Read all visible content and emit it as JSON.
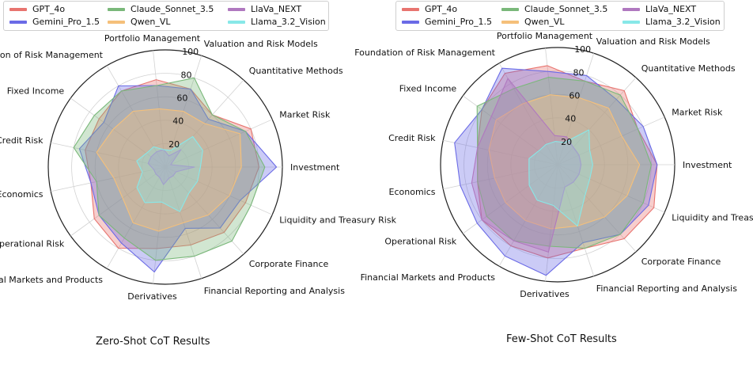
{
  "legend": [
    {
      "name": "GPT_4o",
      "color": "#e8746f"
    },
    {
      "name": "Gemini_Pro_1.5",
      "color": "#6b6be6"
    },
    {
      "name": "Claude_Sonnet_3.5",
      "color": "#7ab87a"
    },
    {
      "name": "Qwen_VL",
      "color": "#f5c07a"
    },
    {
      "name": "LlaVa_NEXT",
      "color": "#b078bf"
    },
    {
      "name": "Llama_3.2_Vision",
      "color": "#88e8e8"
    }
  ],
  "captions": {
    "left": "Zero-Shot CoT Results",
    "right": "Few-Shot CoT Results"
  },
  "chart_data": [
    {
      "type": "radar",
      "title": "Zero-Shot CoT Results",
      "rlim": [
        0,
        100
      ],
      "rticks": [
        "20",
        "40",
        "60",
        "80",
        "100"
      ],
      "categories": [
        "Investment",
        "Market Risk",
        "Quantitative Methods",
        "Valuation and Risk Models",
        "Portfolio Management",
        "Foundation of Risk Management",
        "Fixed Income",
        "Credit Risk",
        "Economics",
        "Operational Risk",
        "Financial Markets and Products",
        "Derivatives",
        "Financial Reporting and Analysis",
        "Corporate Finance",
        "Liquidity and Treasury Risk"
      ],
      "series": [
        {
          "name": "GPT_4o",
          "values": [
            80,
            80,
            60,
            70,
            75,
            75,
            70,
            70,
            65,
            75,
            80,
            70,
            70,
            75,
            75
          ]
        },
        {
          "name": "Gemini_Pro_1.5",
          "values": [
            95,
            75,
            55,
            70,
            70,
            80,
            65,
            75,
            65,
            70,
            75,
            90,
            55,
            70,
            70
          ]
        },
        {
          "name": "Claude_Sonnet_3.5",
          "values": [
            85,
            75,
            60,
            80,
            70,
            75,
            75,
            80,
            60,
            70,
            70,
            80,
            80,
            85,
            80
          ]
        },
        {
          "name": "Qwen_VL",
          "values": [
            65,
            70,
            50,
            50,
            50,
            55,
            55,
            60,
            45,
            45,
            55,
            55,
            50,
            55,
            60
          ]
        },
        {
          "name": "LlaVa_NEXT",
          "values": [
            25,
            5,
            20,
            10,
            15,
            15,
            15,
            15,
            10,
            10,
            10,
            15,
            10,
            10,
            10
          ]
        },
        {
          "name": "Llama_3.2_Vision",
          "values": [
            30,
            35,
            35,
            15,
            15,
            20,
            20,
            25,
            20,
            30,
            35,
            30,
            40,
            30,
            30
          ]
        }
      ]
    },
    {
      "type": "radar",
      "title": "Few-Shot CoT Results",
      "rlim": [
        0,
        100
      ],
      "rticks": [
        "20",
        "40",
        "60",
        "80",
        "100"
      ],
      "categories": [
        "Investment",
        "Market Risk",
        "Quantitative Methods",
        "Valuation and Risk Models",
        "Portfolio Management",
        "Foundation of Risk Management",
        "Fixed Income",
        "Credit Risk",
        "Economics",
        "Operational Risk",
        "Financial Markets and Products",
        "Derivatives",
        "Financial Reporting and Analysis",
        "Corporate Finance",
        "Liquidity and Treasury Risk"
      ],
      "series": [
        {
          "name": "GPT_4o",
          "values": [
            85,
            75,
            85,
            75,
            85,
            90,
            80,
            70,
            70,
            80,
            80,
            80,
            75,
            85,
            90
          ]
        },
        {
          "name": "Gemini_Pro_1.5",
          "values": [
            85,
            80,
            75,
            80,
            80,
            95,
            80,
            90,
            85,
            85,
            90,
            95,
            70,
            80,
            85
          ]
        },
        {
          "name": "Claude_Sonnet_3.5",
          "values": [
            80,
            75,
            80,
            75,
            75,
            75,
            85,
            70,
            70,
            75,
            75,
            70,
            75,
            80,
            80
          ]
        },
        {
          "name": "Qwen_VL",
          "values": [
            70,
            60,
            65,
            60,
            60,
            60,
            65,
            60,
            55,
            55,
            55,
            55,
            55,
            60,
            65
          ]
        },
        {
          "name": "LlaVa_NEXT",
          "values": [
            20,
            20,
            20,
            25,
            25,
            85,
            70,
            70,
            75,
            80,
            75,
            75,
            20,
            20,
            20
          ]
        },
        {
          "name": "Llama_3.2_Vision",
          "values": [
            30,
            30,
            40,
            20,
            20,
            20,
            20,
            25,
            25,
            30,
            35,
            35,
            55,
            35,
            30
          ]
        }
      ]
    }
  ]
}
